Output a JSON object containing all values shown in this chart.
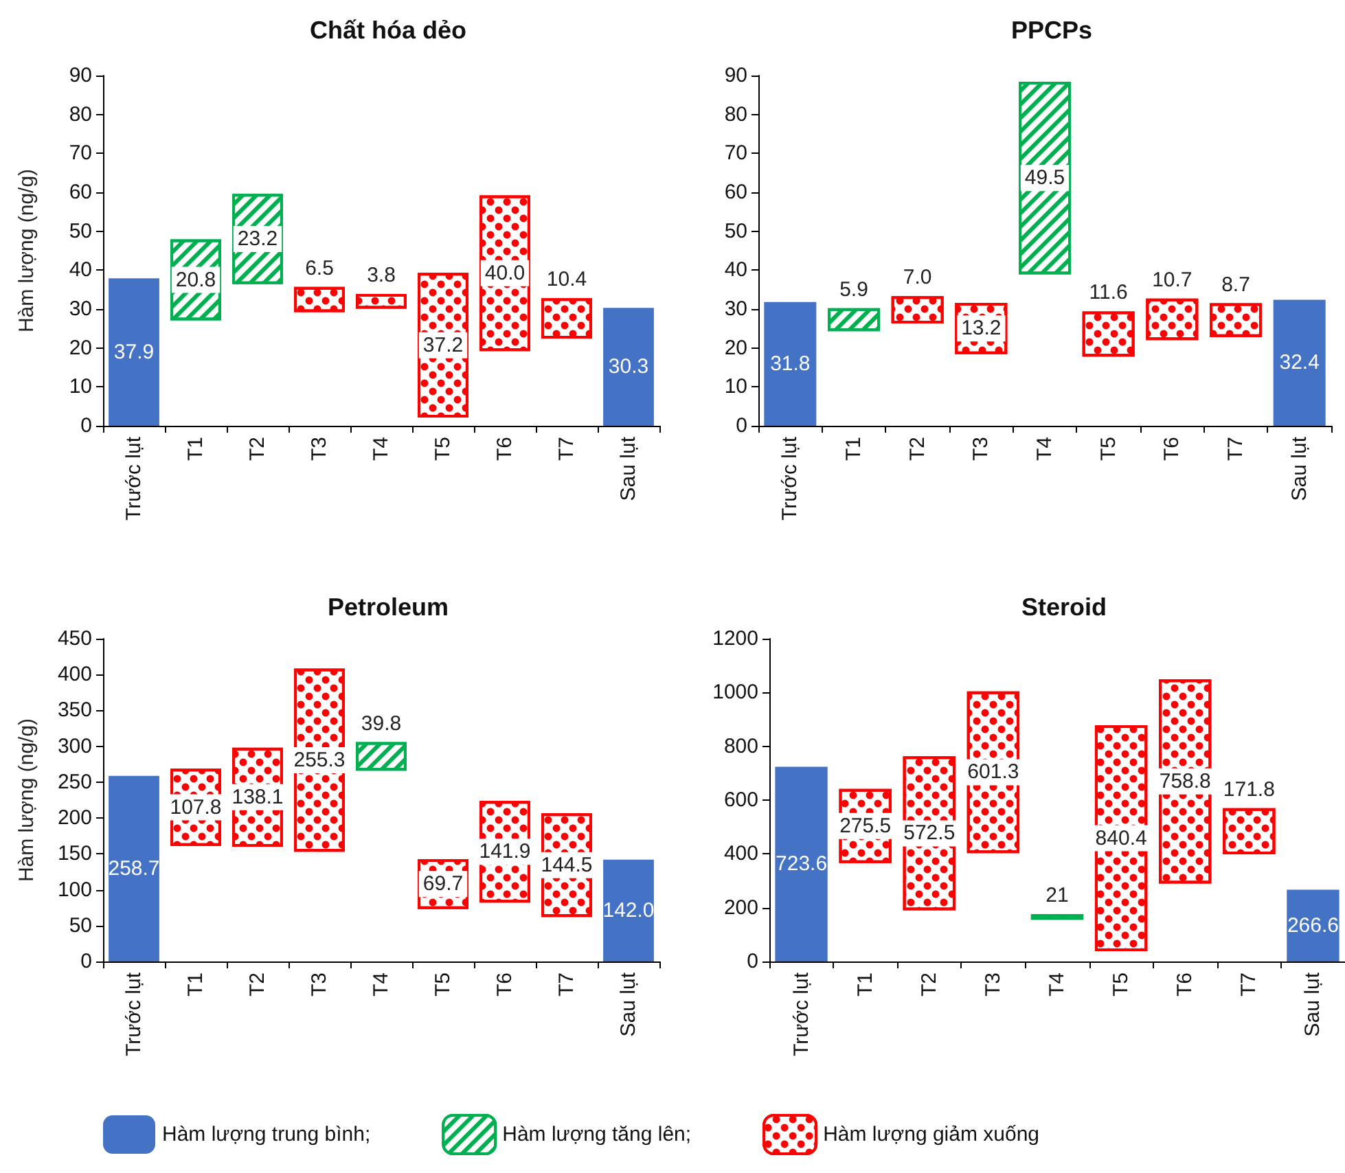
{
  "chart_data": [
    {
      "type": "bar",
      "title": "Chất hóa dẻo",
      "ylabel": "Hàm lượng (ng/g)",
      "categories": [
        "Trước lụt",
        "T1",
        "T2",
        "T3",
        "T4",
        "T5",
        "T6",
        "T7",
        "Sau lụt"
      ],
      "ylim": [
        0,
        90
      ],
      "yticks": [
        0,
        10,
        20,
        30,
        40,
        50,
        60,
        70,
        80,
        90
      ],
      "legend": false,
      "series": [
        {
          "color": "#4472c4",
          "values": [
            37.9,
            null,
            null,
            null,
            null,
            null,
            null,
            null,
            30.3
          ],
          "value_labels": [
            "37.9",
            null,
            null,
            null,
            null,
            null,
            null,
            null,
            "30.3"
          ]
        },
        {
          "color": "#00b050",
          "values": [
            null,
            20.8,
            23.2,
            null,
            null,
            null,
            null,
            null,
            null
          ],
          "base": [
            null,
            27.1,
            36.4,
            null,
            null,
            null,
            null,
            null,
            null
          ],
          "value_labels": [
            null,
            "20.8",
            "23.2",
            null,
            null,
            null,
            null,
            null,
            null
          ]
        },
        {
          "color": "#ff0000",
          "values": [
            null,
            null,
            null,
            6.5,
            3.8,
            37.2,
            40.0,
            10.4,
            null
          ],
          "base": [
            null,
            null,
            null,
            29.2,
            30.1,
            2.1,
            19.2,
            22.4,
            null
          ],
          "value_labels": [
            null,
            null,
            null,
            "6.5",
            "3.8",
            "37.2",
            "40.0",
            "10.4",
            null
          ]
        }
      ]
    },
    {
      "type": "bar",
      "title": "PPCPs",
      "categories": [
        "Trước lụt",
        "T1",
        "T2",
        "T3",
        "T4",
        "T5",
        "T6",
        "T7",
        "Sau lụt"
      ],
      "ylim": [
        0,
        90
      ],
      "yticks": [
        0,
        10,
        20,
        30,
        40,
        50,
        60,
        70,
        80,
        90
      ],
      "legend": false,
      "series": [
        {
          "color": "#4472c4",
          "values": [
            31.8,
            null,
            null,
            null,
            null,
            null,
            null,
            null,
            32.4
          ],
          "value_labels": [
            "31.8",
            null,
            null,
            null,
            null,
            null,
            null,
            null,
            "32.4"
          ]
        },
        {
          "color": "#00b050",
          "values": [
            null,
            5.9,
            null,
            null,
            49.5,
            null,
            null,
            null,
            null
          ],
          "base": [
            null,
            24.3,
            null,
            null,
            38.9,
            null,
            null,
            null,
            null
          ],
          "value_labels": [
            null,
            "5.9",
            null,
            null,
            "49.5",
            null,
            null,
            null,
            null
          ]
        },
        {
          "color": "#ff0000",
          "values": [
            null,
            null,
            7.0,
            13.2,
            null,
            11.6,
            10.7,
            8.7,
            null
          ],
          "base": [
            null,
            null,
            26.3,
            18.4,
            null,
            17.8,
            22.0,
            22.8,
            null
          ],
          "value_labels": [
            null,
            null,
            "7.0",
            "13.2",
            null,
            "11.6",
            "10.7",
            "8.7",
            null
          ]
        }
      ]
    },
    {
      "type": "bar",
      "title": "Petroleum",
      "ylabel": "Hàm lượng (ng/g)",
      "categories": [
        "Trước lụt",
        "T1",
        "T2",
        "T3",
        "T4",
        "T5",
        "T6",
        "T7",
        "Sau lụt"
      ],
      "ylim": [
        0,
        450
      ],
      "yticks": [
        0,
        50,
        100,
        150,
        200,
        250,
        300,
        350,
        400,
        450
      ],
      "legend": false,
      "series": [
        {
          "color": "#4472c4",
          "values": [
            258.7,
            null,
            null,
            null,
            null,
            null,
            null,
            null,
            142.0
          ],
          "value_labels": [
            "258.7",
            null,
            null,
            null,
            null,
            null,
            null,
            null,
            "142.0"
          ]
        },
        {
          "color": "#00b050",
          "values": [
            null,
            null,
            null,
            null,
            39.8,
            null,
            null,
            null,
            null
          ],
          "base": [
            null,
            null,
            null,
            null,
            266,
            null,
            null,
            null,
            null
          ],
          "value_labels": [
            null,
            null,
            null,
            null,
            "39.8",
            null,
            null,
            null,
            null
          ]
        },
        {
          "color": "#ff0000",
          "values": [
            null,
            107.8,
            138.1,
            255.3,
            null,
            69.7,
            141.9,
            144.5,
            null
          ],
          "base": [
            null,
            161,
            160,
            153,
            null,
            73,
            82,
            62,
            null
          ],
          "value_labels": [
            null,
            "107.8",
            "138.1",
            "255.3",
            null,
            "69.7",
            "141.9",
            "144.5",
            null
          ]
        }
      ]
    },
    {
      "type": "bar",
      "title": "Steroid",
      "categories": [
        "Trước lụt",
        "T1",
        "T2",
        "T3",
        "T4",
        "T5",
        "T6",
        "T7",
        "Sau lụt"
      ],
      "ylim": [
        0,
        1200
      ],
      "yticks": [
        0,
        200,
        400,
        600,
        800,
        1000,
        1200
      ],
      "legend": "bottom",
      "series": [
        {
          "name": "Hàm lượng trung bình;",
          "color": "#4472c4",
          "values": [
            723.6,
            null,
            null,
            null,
            null,
            null,
            null,
            null,
            266.6
          ],
          "value_labels": [
            "723.6",
            null,
            null,
            null,
            null,
            null,
            null,
            null,
            "266.6"
          ]
        },
        {
          "name": "Hàm lượng tăng lên;",
          "color": "#00b050",
          "values": [
            null,
            null,
            null,
            null,
            21,
            null,
            null,
            null,
            null
          ],
          "base": [
            null,
            null,
            null,
            null,
            155,
            null,
            null,
            null,
            null
          ],
          "value_labels": [
            null,
            null,
            null,
            null,
            "21",
            null,
            null,
            null,
            null
          ]
        },
        {
          "name": "Hàm lượng giảm xuống",
          "color": "#ff0000",
          "values": [
            null,
            275.5,
            572.5,
            601.3,
            null,
            840.4,
            758.8,
            171.8,
            null
          ],
          "base": [
            null,
            366,
            190,
            403,
            null,
            38,
            290,
            398,
            null
          ],
          "value_labels": [
            null,
            "275.5",
            "572.5",
            "601.3",
            null,
            "840.4",
            "758.8",
            "171.8",
            null
          ]
        }
      ]
    }
  ]
}
